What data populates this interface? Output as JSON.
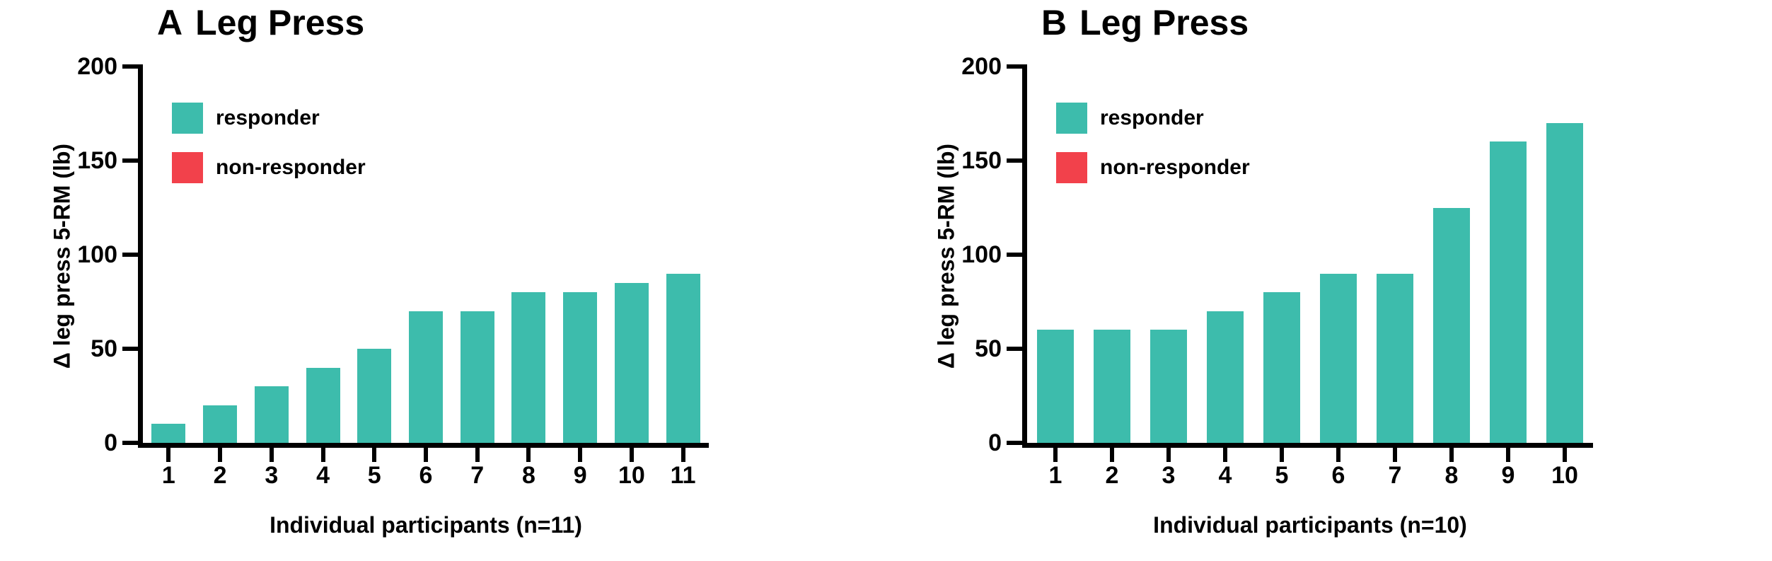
{
  "figure": {
    "background": "#ffffff",
    "text_color": "#000000"
  },
  "chart_data": [
    {
      "type": "bar",
      "panel_letter": "A",
      "title": "Leg Press",
      "ylabel": "Δ leg press 5-RM (lb)",
      "xlabel": "Individual participants (n=11)",
      "categories": [
        "1",
        "2",
        "3",
        "4",
        "5",
        "6",
        "7",
        "8",
        "9",
        "10",
        "11"
      ],
      "values": [
        10,
        20,
        30,
        40,
        50,
        70,
        70,
        80,
        80,
        85,
        90
      ],
      "bar_color": "#3dbcac",
      "ylim": [
        0,
        200
      ],
      "yticks": [
        0,
        50,
        100,
        150,
        200
      ],
      "grid": false,
      "legend_position": "upper-left-inside",
      "legend": [
        {
          "label": "responder",
          "color": "#3dbcac"
        },
        {
          "label": "non-responder",
          "color": "#f2414b"
        }
      ]
    },
    {
      "type": "bar",
      "panel_letter": "B",
      "title": "Leg Press",
      "ylabel": "Δ leg press 5-RM (lb)",
      "xlabel": "Individual participants (n=10)",
      "categories": [
        "1",
        "2",
        "3",
        "4",
        "5",
        "6",
        "7",
        "8",
        "9",
        "10"
      ],
      "values": [
        60,
        60,
        60,
        70,
        80,
        90,
        90,
        125,
        160,
        170
      ],
      "bar_color": "#3dbcac",
      "ylim": [
        0,
        200
      ],
      "yticks": [
        0,
        50,
        100,
        150,
        200
      ],
      "grid": false,
      "legend_position": "upper-left-inside",
      "legend": [
        {
          "label": "responder",
          "color": "#3dbcac"
        },
        {
          "label": "non-responder",
          "color": "#f2414b"
        }
      ]
    }
  ]
}
